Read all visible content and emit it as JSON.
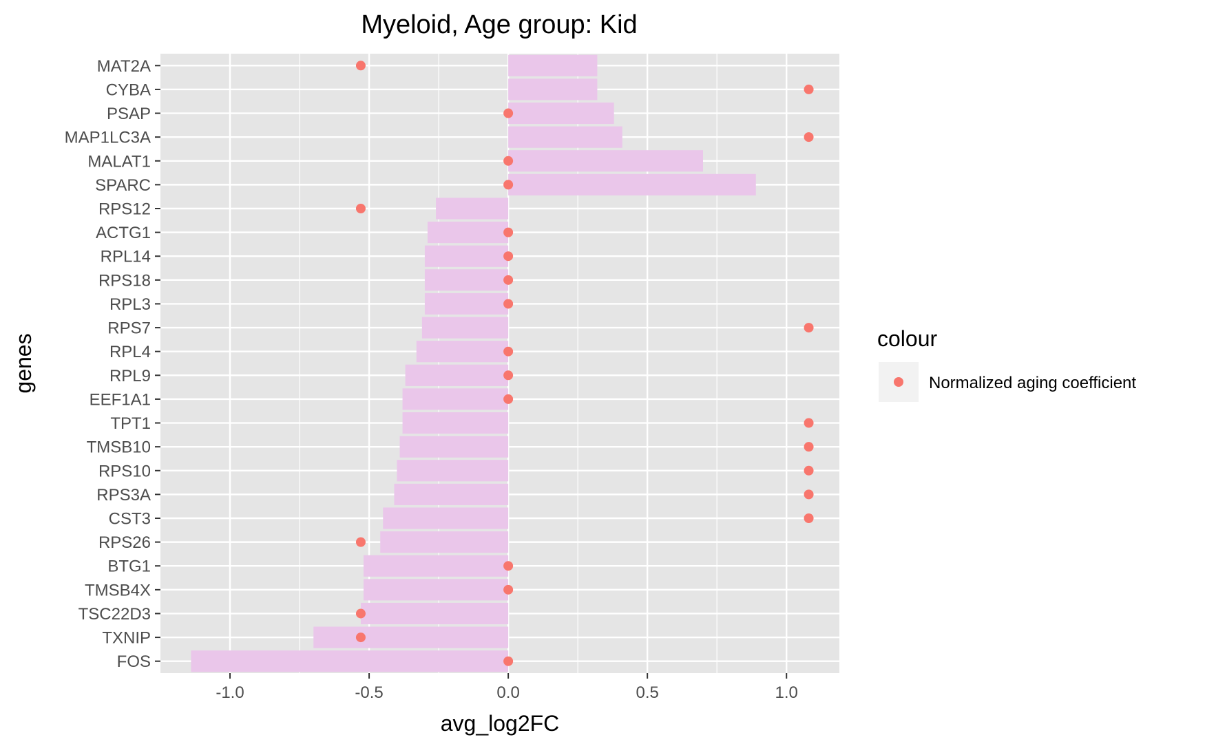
{
  "chart_data": {
    "type": "bar",
    "title": "Myeloid, Age group: Kid",
    "xlabel": "avg_log2FC",
    "ylabel": "genes",
    "xlim": [
      -1.25,
      1.19
    ],
    "x_ticks": [
      -1.0,
      -0.5,
      0.0,
      0.5,
      1.0
    ],
    "x_tick_labels": [
      "-1.0",
      "-0.5",
      "0.0",
      "0.5",
      "1.0"
    ],
    "grid": true,
    "orientation": "horizontal",
    "legend": {
      "title": "colour",
      "position": "right",
      "entries": [
        {
          "label": "Normalized aging coefficient",
          "color": "#F8766D"
        }
      ]
    },
    "categories": [
      "MAT2A",
      "CYBA",
      "PSAP",
      "MAP1LC3A",
      "MALAT1",
      "SPARC",
      "RPS12",
      "ACTG1",
      "RPL14",
      "RPS18",
      "RPL3",
      "RPS7",
      "RPL4",
      "RPL9",
      "EEF1A1",
      "TPT1",
      "TMSB10",
      "RPS10",
      "RPS3A",
      "CST3",
      "RPS26",
      "BTG1",
      "TMSB4X",
      "TSC22D3",
      "TXNIP",
      "FOS"
    ],
    "series": [
      {
        "kind": "bar",
        "color": "#EAC6EA",
        "values": [
          0.32,
          0.32,
          0.38,
          0.41,
          0.7,
          0.89,
          -0.26,
          -0.29,
          -0.3,
          -0.3,
          -0.3,
          -0.31,
          -0.33,
          -0.37,
          -0.38,
          -0.38,
          -0.39,
          -0.4,
          -0.41,
          -0.45,
          -0.46,
          -0.52,
          -0.52,
          -0.53,
          -0.7,
          -1.14
        ]
      },
      {
        "name": "Normalized aging coefficient",
        "kind": "point",
        "color": "#F8766D",
        "values": [
          -0.53,
          1.08,
          0.0,
          1.08,
          0.0,
          0.0,
          -0.53,
          0.0,
          0.0,
          0.0,
          0.0,
          1.08,
          0.0,
          0.0,
          0.0,
          1.08,
          1.08,
          1.08,
          1.08,
          1.08,
          -0.53,
          0.0,
          0.0,
          -0.53,
          -0.53,
          0.0
        ]
      }
    ],
    "colors": {
      "panel_background": "#E5E5E5",
      "grid_line": "#FFFFFF",
      "legend_key_background": "#F2F2F2"
    }
  }
}
